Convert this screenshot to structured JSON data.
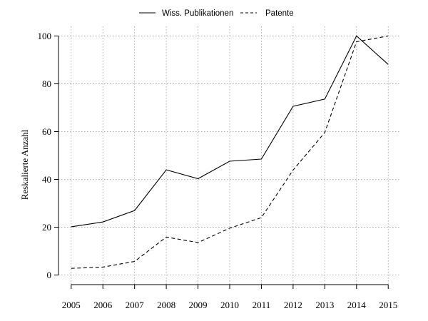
{
  "chart_data": {
    "type": "line",
    "title": "",
    "xlabel": "",
    "ylabel": "Reskalierte Anzahl",
    "x": [
      2005,
      2006,
      2007,
      2008,
      2009,
      2010,
      2011,
      2012,
      2013,
      2014,
      2015
    ],
    "xticks": [
      "2005",
      "2006",
      "2007",
      "2008",
      "2009",
      "2010",
      "2011",
      "2012",
      "2013",
      "2014",
      "2015"
    ],
    "yticks": [
      "0",
      "20",
      "40",
      "60",
      "80",
      "100"
    ],
    "ylim": [
      -4,
      104
    ],
    "xlim": [
      2004.6,
      2015.4
    ],
    "grid": true,
    "legend_position": "top-center",
    "series": [
      {
        "name": "Wiss. Publikationen",
        "style": "solid",
        "values": [
          20.2,
          22.2,
          27,
          44,
          40.3,
          47.6,
          48.5,
          70.6,
          73.6,
          100,
          88.1
        ]
      },
      {
        "name": "Patente",
        "style": "dashed",
        "values": [
          2.8,
          3.3,
          5.7,
          15.9,
          13.6,
          19.6,
          24,
          43.9,
          59.6,
          97.6,
          100
        ]
      }
    ]
  }
}
